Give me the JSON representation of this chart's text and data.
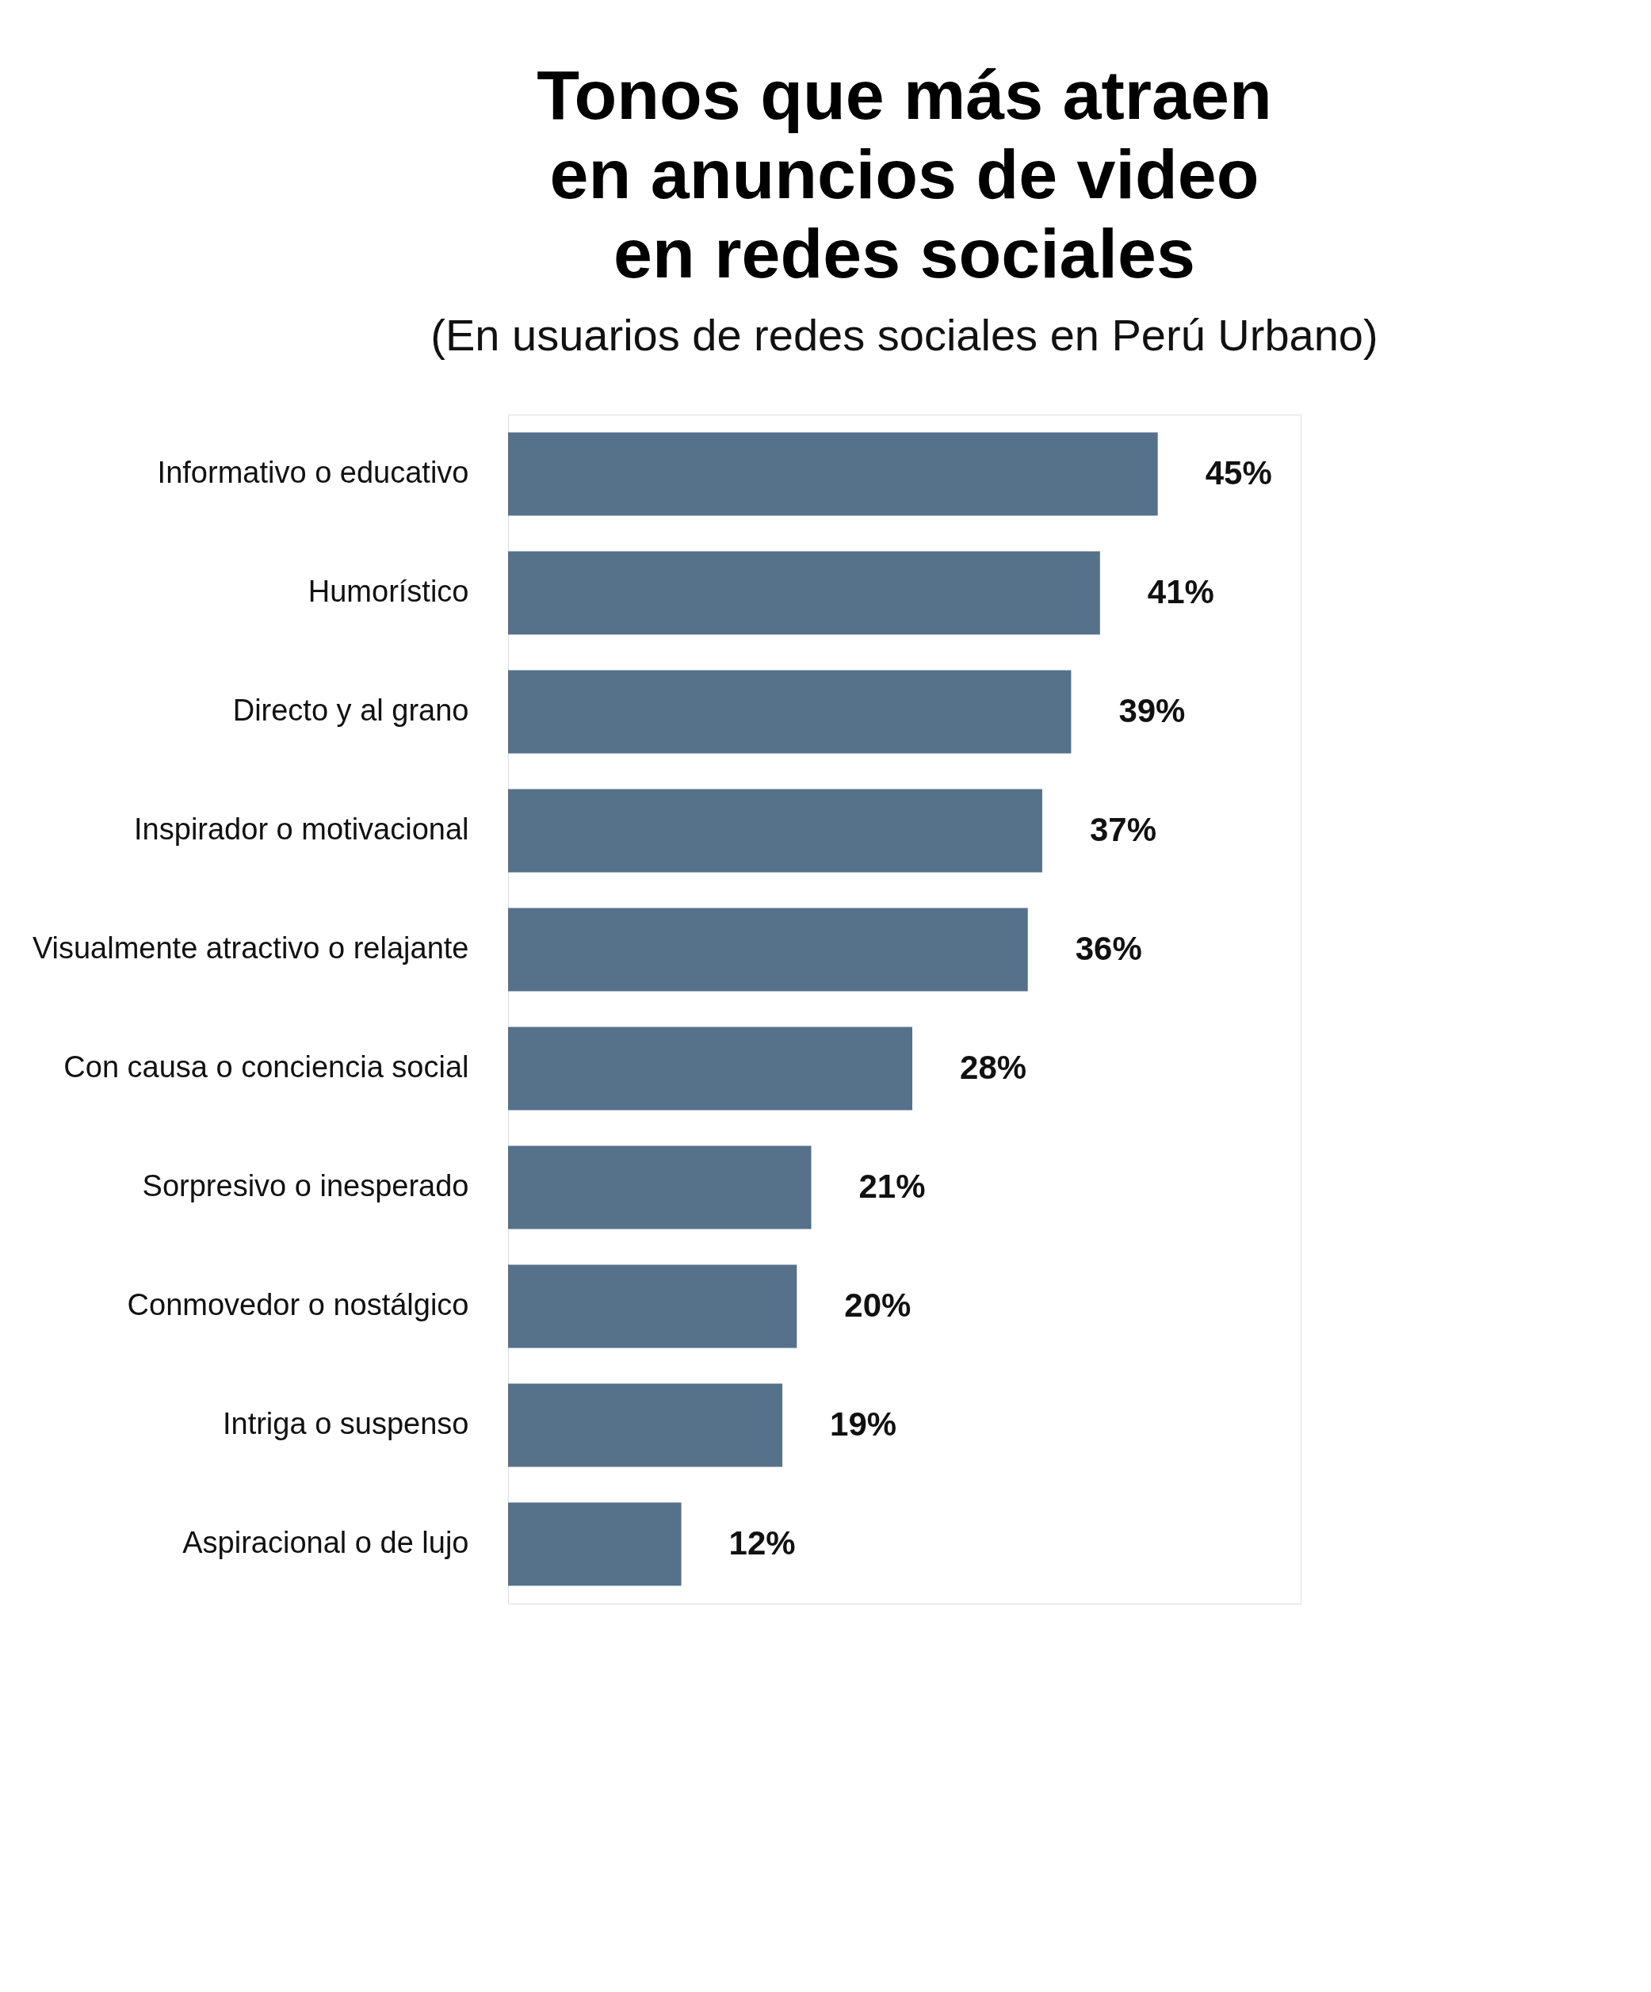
{
  "chart_data": {
    "type": "bar",
    "orientation": "horizontal",
    "title": "Tonos que más atraen\nen anuncios de video\nen redes sociales",
    "subtitle": "(En usuarios de redes sociales en Perú Urbano)",
    "categories": [
      "Informativo o educativo",
      "Humorístico",
      "Directo y al grano",
      "Inspirador o motivacional",
      "Visualmente atractivo o relajante",
      "Con causa o conciencia social",
      "Sorpresivo o inesperado",
      "Conmovedor o nostálgico",
      "Intriga o suspenso",
      "Aspiracional o de lujo"
    ],
    "values": [
      45,
      41,
      39,
      37,
      36,
      28,
      21,
      20,
      19,
      12
    ],
    "value_labels": [
      "45%",
      "41%",
      "39%",
      "37%",
      "36%",
      "28%",
      "21%",
      "20%",
      "19%",
      "12%"
    ],
    "color": "#56718a"
  }
}
